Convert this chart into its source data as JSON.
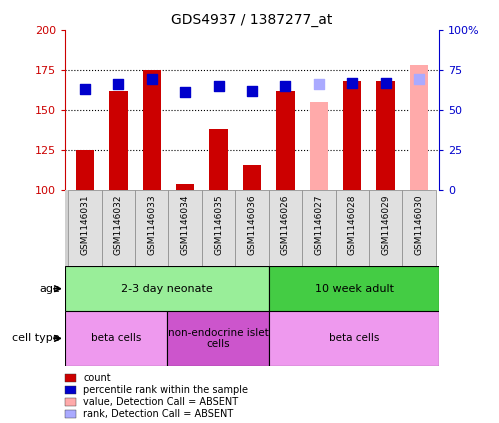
{
  "title": "GDS4937 / 1387277_at",
  "samples": [
    "GSM1146031",
    "GSM1146032",
    "GSM1146033",
    "GSM1146034",
    "GSM1146035",
    "GSM1146036",
    "GSM1146026",
    "GSM1146027",
    "GSM1146028",
    "GSM1146029",
    "GSM1146030"
  ],
  "count_values": [
    125,
    162,
    175,
    104,
    138,
    116,
    162,
    null,
    168,
    168,
    null
  ],
  "rank_values": [
    63,
    66,
    69,
    61,
    65,
    62,
    65,
    null,
    67,
    67,
    null
  ],
  "count_absent": [
    null,
    null,
    null,
    null,
    null,
    null,
    null,
    155,
    null,
    null,
    178
  ],
  "rank_absent": [
    null,
    null,
    null,
    null,
    null,
    null,
    null,
    66,
    null,
    null,
    69
  ],
  "absent_flags": [
    false,
    false,
    false,
    false,
    false,
    false,
    false,
    true,
    false,
    false,
    true
  ],
  "ylim_left": [
    100,
    200
  ],
  "ylim_right": [
    0,
    100
  ],
  "yticks_left": [
    100,
    125,
    150,
    175,
    200
  ],
  "yticks_right": [
    0,
    25,
    50,
    75,
    100
  ],
  "ytick_labels_left": [
    "100",
    "125",
    "150",
    "175",
    "200"
  ],
  "ytick_labels_right": [
    "0",
    "25",
    "50",
    "75",
    "100%"
  ],
  "bar_color": "#cc0000",
  "bar_absent_color": "#ffaaaa",
  "rank_color": "#0000cc",
  "rank_absent_color": "#aaaaff",
  "age_groups": [
    {
      "label": "2-3 day neonate",
      "start": 0,
      "end": 6,
      "color": "#99ee99"
    },
    {
      "label": "10 week adult",
      "start": 6,
      "end": 11,
      "color": "#44cc44"
    }
  ],
  "cell_groups": [
    {
      "label": "beta cells",
      "start": 0,
      "end": 3,
      "color": "#ee99ee"
    },
    {
      "label": "non-endocrine islet\ncells",
      "start": 3,
      "end": 6,
      "color": "#cc55cc"
    },
    {
      "label": "beta cells",
      "start": 6,
      "end": 11,
      "color": "#ee99ee"
    }
  ],
  "age_row_label": "age",
  "cell_type_row_label": "cell type",
  "legend_items": [
    {
      "label": "count",
      "color": "#cc0000"
    },
    {
      "label": "percentile rank within the sample",
      "color": "#0000cc"
    },
    {
      "label": "value, Detection Call = ABSENT",
      "color": "#ffaaaa"
    },
    {
      "label": "rank, Detection Call = ABSENT",
      "color": "#aaaaff"
    }
  ],
  "dotted_line_values": [
    125,
    150,
    175
  ],
  "bar_width": 0.55,
  "rank_marker_size": 50,
  "base_value": 100
}
